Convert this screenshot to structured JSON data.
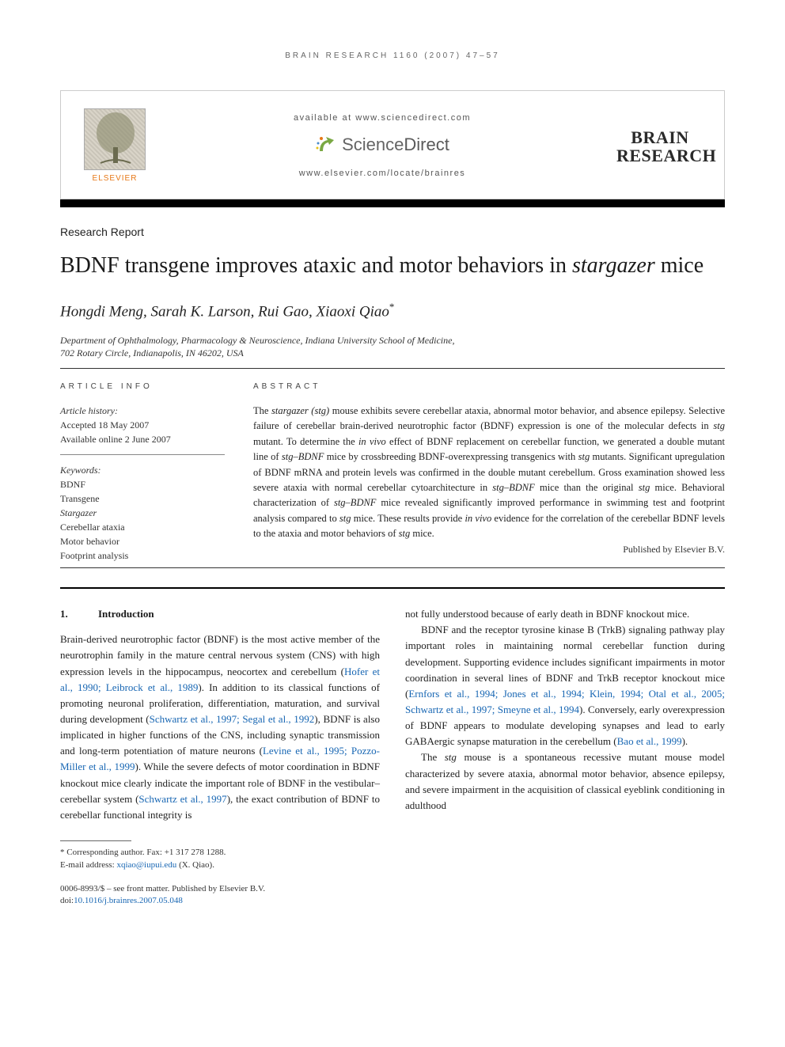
{
  "running_header": "BRAIN RESEARCH 1160 (2007) 47–57",
  "header": {
    "elsevier_label": "ELSEVIER",
    "availability": "available at www.sciencedirect.com",
    "sciencedirect": {
      "prefix": "Science",
      "suffix": "Direct"
    },
    "journal_url": "www.elsevier.com/locate/brainres",
    "journal_name_line1": "BRAIN",
    "journal_name_line2": "RESEARCH"
  },
  "article": {
    "section_label": "Research Report",
    "title_pre": "BDNF transgene improves ataxic and motor behaviors in ",
    "title_italic": "stargazer",
    "title_post": " mice",
    "authors": "Hongdi Meng, Sarah K. Larson, Rui Gao, Xiaoxi Qiao",
    "corr_mark": "*",
    "affiliation_line1": "Department of Ophthalmology, Pharmacology & Neuroscience, Indiana University School of Medicine,",
    "affiliation_line2": "702 Rotary Circle, Indianapolis, IN 46202, USA"
  },
  "info": {
    "heading": "ARTICLE INFO",
    "history_label": "Article history:",
    "accepted": "Accepted 18 May 2007",
    "online": "Available online 2 June 2007",
    "keywords_label": "Keywords:",
    "keywords": [
      "BDNF",
      "Transgene",
      "Stargazer",
      "Cerebellar ataxia",
      "Motor behavior",
      "Footprint analysis"
    ]
  },
  "abstract": {
    "heading": "ABSTRACT",
    "text_parts": [
      {
        "t": "The "
      },
      {
        "t": "stargazer (stg)",
        "i": true
      },
      {
        "t": " mouse exhibits severe cerebellar ataxia, abnormal motor behavior, and absence epilepsy. Selective failure of cerebellar brain-derived neurotrophic factor (BDNF) expression is one of the molecular defects in "
      },
      {
        "t": "stg",
        "i": true
      },
      {
        "t": " mutant. To determine the "
      },
      {
        "t": "in vivo",
        "i": true
      },
      {
        "t": " effect of BDNF replacement on cerebellar function, we generated a double mutant line of "
      },
      {
        "t": "stg–BDNF",
        "i": true
      },
      {
        "t": " mice by crossbreeding BDNF-overexpressing transgenics with "
      },
      {
        "t": "stg",
        "i": true
      },
      {
        "t": " mutants. Significant upregulation of BDNF mRNA and protein levels was confirmed in the double mutant cerebellum. Gross examination showed less severe ataxia with normal cerebellar cytoarchitecture in "
      },
      {
        "t": "stg–BDNF",
        "i": true
      },
      {
        "t": " mice than the original "
      },
      {
        "t": "stg",
        "i": true
      },
      {
        "t": " mice. Behavioral characterization of "
      },
      {
        "t": "stg–BDNF",
        "i": true
      },
      {
        "t": " mice revealed significantly improved performance in swimming test and footprint analysis compared to "
      },
      {
        "t": "stg",
        "i": true
      },
      {
        "t": " mice. These results provide "
      },
      {
        "t": "in vivo",
        "i": true
      },
      {
        "t": " evidence for the correlation of the cerebellar BDNF levels to the ataxia and motor behaviors of "
      },
      {
        "t": "stg",
        "i": true
      },
      {
        "t": " mice."
      }
    ],
    "publisher": "Published by Elsevier B.V."
  },
  "body": {
    "sec_num": "1.",
    "sec_title": "Introduction",
    "col1": [
      {
        "t": "Brain-derived neurotrophic factor (BDNF) is the most active member of the neurotrophin family in the mature central nervous system (CNS) with high expression levels in the hippocampus, neocortex and cerebellum ("
      },
      {
        "t": "Hofer et al., 1990; Leibrock et al., 1989",
        "r": true
      },
      {
        "t": "). In addition to its classical functions of promoting neuronal proliferation, differentiation, maturation, and survival during development ("
      },
      {
        "t": "Schwartz et al., 1997; Segal et al., 1992",
        "r": true
      },
      {
        "t": "), BDNF is also implicated in higher functions of the CNS, including synaptic transmission and long-term potentiation of mature neurons ("
      },
      {
        "t": "Levine et al., 1995; Pozzo-Miller et al., 1999",
        "r": true
      },
      {
        "t": "). While the severe defects of motor coordination in BDNF knockout mice clearly indicate the important role of BDNF in the vestibular–cerebellar system ("
      },
      {
        "t": "Schwartz et al., 1997",
        "r": true
      },
      {
        "t": "), the exact contribution of BDNF to cerebellar functional integrity is"
      }
    ],
    "col2_p1": "not fully understood because of early death in BDNF knockout mice.",
    "col2_p2": [
      {
        "t": "BDNF and the receptor tyrosine kinase B (TrkB) signaling pathway play important roles in maintaining normal cerebellar function during development. Supporting evidence includes significant impairments in motor coordination in several lines of BDNF and TrkB receptor knockout mice ("
      },
      {
        "t": "Ernfors et al., 1994; Jones et al., 1994; Klein, 1994; Otal et al., 2005; Schwartz et al., 1997; Smeyne et al., 1994",
        "r": true
      },
      {
        "t": "). Conversely, early overexpression of BDNF appears to modulate developing synapses and lead to early GABAergic synapse maturation in the cerebellum ("
      },
      {
        "t": "Bao et al., 1999",
        "r": true
      },
      {
        "t": ")."
      }
    ],
    "col2_p3": [
      {
        "t": "The "
      },
      {
        "t": "stg",
        "i": true
      },
      {
        "t": " mouse is a spontaneous recessive mutant mouse model characterized by severe ataxia, abnormal motor behavior, absence epilepsy, and severe impairment in the acquisition of classical eyeblink conditioning in adulthood"
      }
    ]
  },
  "footnote": {
    "corr_label": "* Corresponding author.",
    "fax": " Fax: +1 317 278 1288.",
    "email_label": "E-mail address: ",
    "email": "xqiao@iupui.edu",
    "email_post": " (X. Qiao)."
  },
  "copyright": {
    "line1": "0006-8993/$ – see front matter. Published by Elsevier B.V.",
    "doi_label": "doi:",
    "doi": "10.1016/j.brainres.2007.05.048"
  },
  "style": {
    "accent_color": "#e67817",
    "link_color": "#1766b3",
    "text_color": "#222222",
    "background": "#ffffff"
  }
}
